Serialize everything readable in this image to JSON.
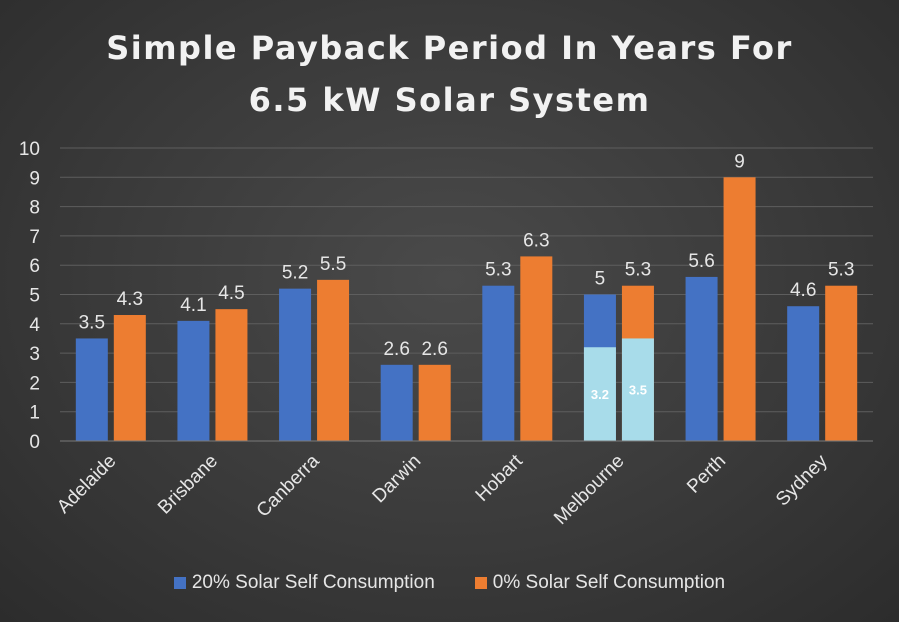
{
  "chart_data": {
    "type": "bar",
    "title_lines": [
      "Simple Payback Period In Years For",
      "6.5 kW Solar System"
    ],
    "categories": [
      "Adelaide",
      "Brisbane",
      "Canberra",
      "Darwin",
      "Hobart",
      "Melbourne",
      "Perth",
      "Sydney"
    ],
    "series": [
      {
        "name": "20% Solar Self Consumption",
        "color": "#4472c4",
        "values": [
          3.5,
          4.1,
          5.2,
          2.6,
          5.3,
          5,
          5.6,
          4.6
        ],
        "labels": [
          "3.5",
          "4.1",
          "5.2",
          "2.6",
          "5.3",
          "5",
          "5.6",
          "4.6"
        ]
      },
      {
        "name": "0% Solar Self Consumption",
        "color": "#ed7d31",
        "values": [
          4.3,
          4.5,
          5.5,
          2.6,
          6.3,
          5.3,
          9,
          5.3
        ],
        "labels": [
          "4.3",
          "4.5",
          "5.5",
          "2.6",
          "6.3",
          "5.3",
          "9",
          "5.3"
        ]
      }
    ],
    "annotations": [
      {
        "category": "Melbourne",
        "series": 0,
        "value": 3.2,
        "label": "3.2",
        "color": "#a8dcea"
      },
      {
        "category": "Melbourne",
        "series": 1,
        "value": 3.5,
        "label": "3.5",
        "color": "#a8dcea"
      }
    ],
    "ylim": [
      0,
      10
    ],
    "yticks": [
      "0",
      "1",
      "2",
      "3",
      "4",
      "5",
      "6",
      "7",
      "8",
      "9",
      "10"
    ],
    "grid": true,
    "legend_position": "bottom"
  }
}
